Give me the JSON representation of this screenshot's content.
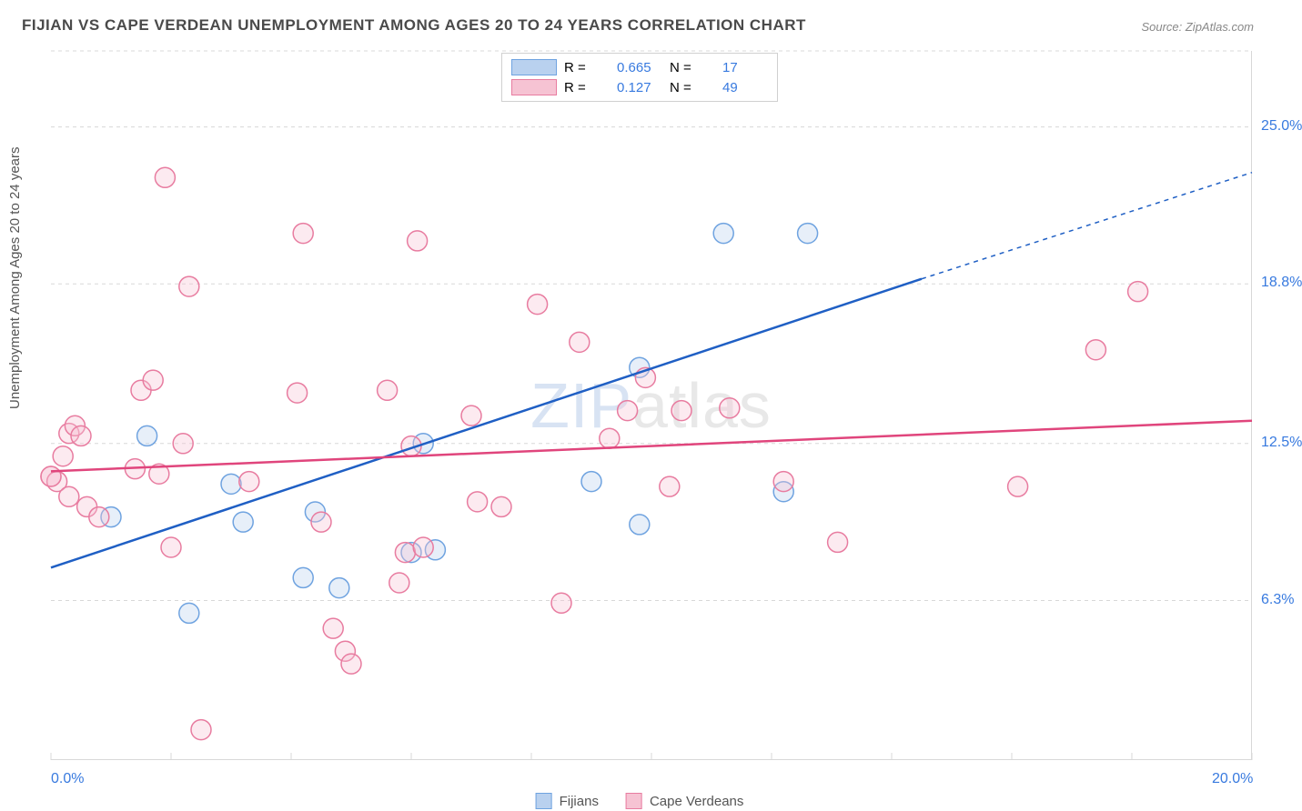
{
  "title": "FIJIAN VS CAPE VERDEAN UNEMPLOYMENT AMONG AGES 20 TO 24 YEARS CORRELATION CHART",
  "source": "Source: ZipAtlas.com",
  "ylabel": "Unemployment Among Ages 20 to 24 years",
  "watermark_left": "ZIP",
  "watermark_right": "atlas",
  "chart": {
    "type": "scatter",
    "xlim": [
      0,
      20
    ],
    "ylim": [
      0,
      28
    ],
    "x_axis_labels": [
      {
        "x": 0,
        "text": "0.0%"
      },
      {
        "x": 20,
        "text": "20.0%"
      }
    ],
    "y_axis_labels": [
      {
        "y": 6.3,
        "text": "6.3%"
      },
      {
        "y": 12.5,
        "text": "12.5%"
      },
      {
        "y": 18.8,
        "text": "18.8%"
      },
      {
        "y": 25.0,
        "text": "25.0%"
      }
    ],
    "x_ticks": [
      0,
      2,
      4,
      6,
      8,
      10,
      12,
      14,
      16,
      18,
      20
    ],
    "y_gridlines": [
      6.3,
      12.5,
      18.8,
      25.0,
      28
    ],
    "grid_color": "#d8d8d8",
    "background_color": "#ffffff",
    "value_color": "#387adf",
    "text_color": "#555555",
    "marker_radius": 11,
    "marker_stroke_width": 1.5,
    "marker_fill_opacity": 0.35,
    "series": [
      {
        "name": "Fijians",
        "color": "#6fa3e0",
        "fill": "#b9d1ef",
        "R": "0.665",
        "N": "17",
        "trend": {
          "x1": 0,
          "y1": 7.6,
          "x2": 14.5,
          "y2": 19.0,
          "x2_ext": 20,
          "y2_ext": 23.2
        },
        "points": [
          [
            1.6,
            12.8
          ],
          [
            1.0,
            9.6
          ],
          [
            3.2,
            9.4
          ],
          [
            3.0,
            10.9
          ],
          [
            4.2,
            7.2
          ],
          [
            4.8,
            6.8
          ],
          [
            4.4,
            9.8
          ],
          [
            2.3,
            5.8
          ],
          [
            6.0,
            8.2
          ],
          [
            6.2,
            12.5
          ],
          [
            6.4,
            8.3
          ],
          [
            9.0,
            11.0
          ],
          [
            9.8,
            9.3
          ],
          [
            9.8,
            15.5
          ],
          [
            11.2,
            20.8
          ],
          [
            12.6,
            20.8
          ],
          [
            12.2,
            10.6
          ]
        ]
      },
      {
        "name": "Cape Verdeans",
        "color": "#e87ca0",
        "fill": "#f6c3d3",
        "R": "0.127",
        "N": "49",
        "trend": {
          "x1": 0,
          "y1": 11.4,
          "x2": 20,
          "y2": 13.4
        },
        "points": [
          [
            0.0,
            11.2
          ],
          [
            0.1,
            11.0
          ],
          [
            0.2,
            12.0
          ],
          [
            0.3,
            12.9
          ],
          [
            0.3,
            10.4
          ],
          [
            0.4,
            13.2
          ],
          [
            0.5,
            12.8
          ],
          [
            0.6,
            10.0
          ],
          [
            0.8,
            9.6
          ],
          [
            1.4,
            11.5
          ],
          [
            1.5,
            14.6
          ],
          [
            1.7,
            15.0
          ],
          [
            1.8,
            11.3
          ],
          [
            1.9,
            23.0
          ],
          [
            2.0,
            8.4
          ],
          [
            2.2,
            12.5
          ],
          [
            2.3,
            18.7
          ],
          [
            2.5,
            1.2
          ],
          [
            3.3,
            11.0
          ],
          [
            4.1,
            14.5
          ],
          [
            4.5,
            9.4
          ],
          [
            4.7,
            5.2
          ],
          [
            4.9,
            4.3
          ],
          [
            5.0,
            3.8
          ],
          [
            4.2,
            20.8
          ],
          [
            5.8,
            7.0
          ],
          [
            5.9,
            8.2
          ],
          [
            6.0,
            12.4
          ],
          [
            6.1,
            20.5
          ],
          [
            5.6,
            14.6
          ],
          [
            7.0,
            13.6
          ],
          [
            7.1,
            10.2
          ],
          [
            7.5,
            10.0
          ],
          [
            8.1,
            18.0
          ],
          [
            8.5,
            6.2
          ],
          [
            8.8,
            16.5
          ],
          [
            9.3,
            12.7
          ],
          [
            9.6,
            13.8
          ],
          [
            9.9,
            15.1
          ],
          [
            10.3,
            10.8
          ],
          [
            10.5,
            13.8
          ],
          [
            12.2,
            11.0
          ],
          [
            11.3,
            13.9
          ],
          [
            13.1,
            8.6
          ],
          [
            16.1,
            10.8
          ],
          [
            17.4,
            16.2
          ],
          [
            18.1,
            18.5
          ],
          [
            0.0,
            11.2
          ],
          [
            6.2,
            8.4
          ]
        ]
      }
    ],
    "legend_bottom": [
      {
        "label": "Fijians",
        "color": "#6fa3e0",
        "fill": "#b9d1ef"
      },
      {
        "label": "Cape Verdeans",
        "color": "#e87ca0",
        "fill": "#f6c3d3"
      }
    ]
  }
}
